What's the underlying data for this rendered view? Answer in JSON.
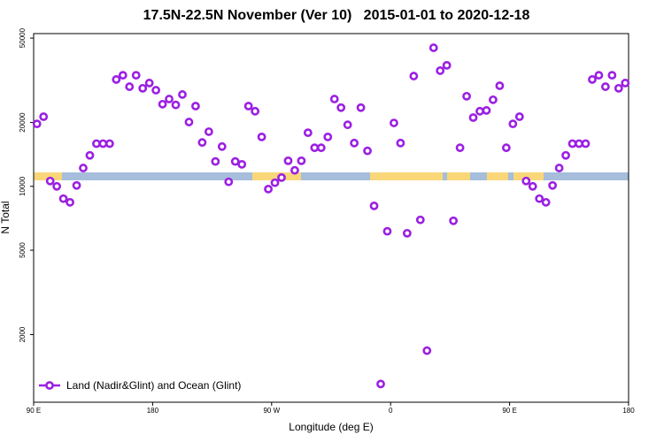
{
  "chart_data": {
    "type": "scatter",
    "title": "17.5N-22.5N November (Ver 10)   2015-01-01 to 2020-12-18",
    "x_label": "Longitude (deg E)",
    "y_label": "N Total",
    "log_y": true,
    "xlim": [
      90,
      540
    ],
    "xticks": [
      {
        "value": 90,
        "label": "90 E"
      },
      180,
      {
        "value": 270,
        "label": "90 W"
      },
      {
        "value": 360,
        "label": "0"
      },
      {
        "value": 450,
        "label": "90 E"
      },
      {
        "value": 540,
        "label": "180"
      }
    ],
    "ylim": [
      960,
      52500
    ],
    "yticks": [
      2000,
      5000,
      10000,
      20000,
      50000
    ],
    "legend": "bottom-left",
    "series": [
      {
        "name": "Land (Nadir&Glint) and Ocean (Glint)",
        "color": "#9b1fe3",
        "x": [
          92.5,
          97.5,
          102.5,
          107.5,
          112.5,
          117.5,
          122.5,
          127.5,
          132.5,
          137.5,
          142.5,
          147.5,
          152.5,
          157.5,
          162.5,
          167.5,
          172.5,
          177.5,
          182.5,
          187.5,
          192.5,
          197.5,
          202.5,
          207.5,
          212.5,
          217.5,
          222.5,
          227.5,
          232.5,
          237.5,
          242.5,
          247.5,
          252.5,
          257.5,
          262.5,
          267.5,
          272.5,
          277.5,
          282.5,
          287.5,
          292.5,
          297.5,
          302.5,
          307.5,
          312.5,
          317.5,
          322.5,
          327.5,
          332.5,
          337.5,
          342.5,
          347.5,
          352.5,
          357.5,
          362.5,
          367.5,
          372.5,
          377.5,
          382.5,
          387.5,
          392.5,
          397.5,
          402.5,
          407.5,
          412.5,
          417.5,
          422.5,
          427.5,
          432.5,
          437.5,
          442.5,
          447.5,
          452.5,
          457.5,
          462.5,
          467.5,
          472.5,
          477.5,
          482.5,
          487.5,
          492.5,
          497.5,
          502.5,
          507.5,
          512.5,
          517.5,
          522.5,
          527.5,
          532.5,
          537.5
        ],
        "values": [
          19700,
          21300,
          10600,
          10000,
          8750,
          8410,
          10100,
          12200,
          14000,
          15900,
          15900,
          15900,
          31900,
          33400,
          29500,
          33400,
          29000,
          30700,
          28400,
          24400,
          25800,
          24200,
          27100,
          20100,
          23900,
          16100,
          18100,
          13100,
          15400,
          10500,
          13100,
          12700,
          23900,
          22600,
          17100,
          9710,
          10400,
          11000,
          13200,
          11900,
          13200,
          17900,
          15200,
          15200,
          17100,
          25800,
          23500,
          19500,
          16000,
          23500,
          14700,
          8090,
          1170,
          6140,
          19900,
          16000,
          6010,
          33100,
          6950,
          1680,
          45000,
          35100,
          37200,
          6880,
          15200,
          26600,
          21100,
          22600,
          22800,
          25600,
          29800,
          15200,
          19700,
          21300,
          10600,
          10000,
          8750,
          8410,
          10100,
          12200,
          14000,
          15900,
          15900,
          15900,
          31900,
          33400,
          29500,
          33400,
          29000,
          30700
        ]
      }
    ]
  }
}
